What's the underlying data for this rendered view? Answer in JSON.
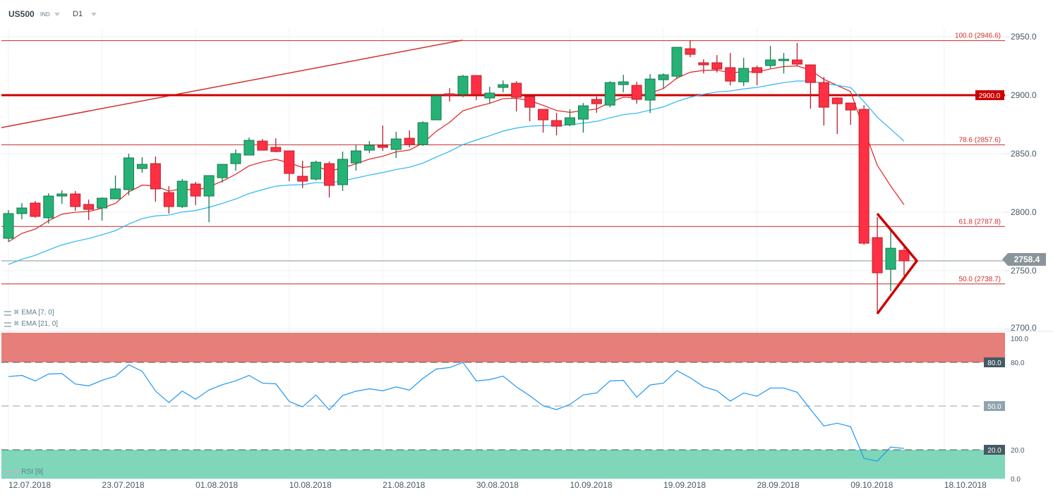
{
  "header": {
    "symbol": "US500",
    "type": "IND",
    "timeframe": "D1"
  },
  "legend": {
    "ema7": "EMA [7, 0]",
    "ema21": "EMA [21, 0]",
    "rsi": "RSI [9]"
  },
  "colors": {
    "up": "#26b276",
    "up_border": "#167a4e",
    "down": "#ff3044",
    "down_border": "#b81f2c",
    "ema7": "#e02020",
    "ema21": "#29b6f6",
    "level": "#cc0000",
    "rsi": "#2196f3"
  },
  "price_axis": {
    "ticks": [
      "2950.0",
      "2900.0",
      "2850.0",
      "2800.0",
      "2750.0",
      "2700.0"
    ],
    "tick_values": [
      2950,
      2900,
      2850,
      2800,
      2750,
      2700
    ]
  },
  "current_price": {
    "value": 2758.4,
    "label": "2758.4"
  },
  "levels": [
    {
      "price": 2946.6,
      "label": "100.0 (2946.6)",
      "kind": "fib"
    },
    {
      "price": 2900.0,
      "label": "2900.0",
      "kind": "major"
    },
    {
      "price": 2857.6,
      "label": "78.6 (2857.6)",
      "kind": "fib"
    },
    {
      "price": 2787.8,
      "label": "61.8 (2787.8)",
      "kind": "fib"
    },
    {
      "price": 2738.7,
      "label": "50.0 (2738.7)",
      "kind": "fib"
    }
  ],
  "x_labels": [
    {
      "label": "12.07.2018",
      "candle": 0
    },
    {
      "label": "23.07.2018",
      "candle": 7
    },
    {
      "label": "01.08.2018",
      "candle": 14
    },
    {
      "label": "10.08.2018",
      "candle": 21
    },
    {
      "label": "21.08.2018",
      "candle": 28
    },
    {
      "label": "30.08.2018",
      "candle": 35
    },
    {
      "label": "10.09.2018",
      "candle": 42
    },
    {
      "label": "19.09.2018",
      "candle": 49
    },
    {
      "label": "28.09.2018",
      "candle": 56
    },
    {
      "label": "09.10.2018",
      "candle": 63
    },
    {
      "label": "18.10.2018",
      "candle": 70
    }
  ],
  "rsi_axis": {
    "ticks": [
      "100.0",
      "80.0",
      "20.0",
      "0.0"
    ],
    "tick_values": [
      100,
      80,
      20,
      0
    ],
    "overbought": "80.0",
    "mid": "50.0",
    "oversold": "20.0"
  },
  "chart_data": {
    "type": "candlestick",
    "ylim": [
      2700,
      2950
    ],
    "ema7_start": 2774.7,
    "ema21_start": 2755.4,
    "ohlc": [
      [
        2777.7,
        2801.8,
        2774.7,
        2798.8
      ],
      [
        2798.8,
        2807.8,
        2794.0,
        2803.6
      ],
      [
        2807.8,
        2809.6,
        2795.2,
        2796.4
      ],
      [
        2795.2,
        2816.2,
        2790.3,
        2813.8
      ],
      [
        2813.8,
        2818.7,
        2807.2,
        2815.6
      ],
      [
        2815.6,
        2818.1,
        2801.2,
        2804.8
      ],
      [
        2806.6,
        2810.8,
        2793.4,
        2802.4
      ],
      [
        2803.6,
        2812.6,
        2792.8,
        2812.0
      ],
      [
        2811.4,
        2831.3,
        2811.4,
        2819.9
      ],
      [
        2819.3,
        2850.0,
        2814.4,
        2846.4
      ],
      [
        2837.3,
        2847.0,
        2833.7,
        2840.9
      ],
      [
        2841.5,
        2847.6,
        2809.0,
        2819.9
      ],
      [
        2816.8,
        2822.3,
        2798.8,
        2804.8
      ],
      [
        2804.8,
        2828.3,
        2803.6,
        2826.5
      ],
      [
        2824.1,
        2825.9,
        2806.0,
        2813.8
      ],
      [
        2813.8,
        2831.3,
        2791.5,
        2831.3
      ],
      [
        2829.5,
        2840.9,
        2825.3,
        2840.9
      ],
      [
        2841.5,
        2853.6,
        2835.5,
        2850.0
      ],
      [
        2848.8,
        2863.8,
        2848.8,
        2861.4
      ],
      [
        2860.8,
        2862.6,
        2853.0,
        2853.0
      ],
      [
        2855.4,
        2863.2,
        2851.2,
        2851.8
      ],
      [
        2852.4,
        2852.4,
        2826.5,
        2833.1
      ],
      [
        2830.7,
        2844.0,
        2820.5,
        2826.5
      ],
      [
        2828.3,
        2844.0,
        2827.1,
        2842.7
      ],
      [
        2841.5,
        2843.4,
        2812.6,
        2822.9
      ],
      [
        2823.5,
        2851.8,
        2818.1,
        2845.2
      ],
      [
        2842.1,
        2857.2,
        2835.5,
        2852.4
      ],
      [
        2853.0,
        2860.8,
        2850.6,
        2857.2
      ],
      [
        2857.2,
        2874.1,
        2852.4,
        2855.4
      ],
      [
        2853.6,
        2868.7,
        2846.4,
        2862.6
      ],
      [
        2863.2,
        2869.9,
        2855.4,
        2857.8
      ],
      [
        2857.8,
        2877.7,
        2856.6,
        2876.5
      ],
      [
        2878.9,
        2899.4,
        2878.9,
        2899.4
      ],
      [
        2901.2,
        2906.0,
        2894.6,
        2900.0
      ],
      [
        2900.6,
        2917.4,
        2898.2,
        2916.2
      ],
      [
        2916.8,
        2916.8,
        2895.8,
        2900.6
      ],
      [
        2897.6,
        2907.2,
        2892.7,
        2901.8
      ],
      [
        2906.6,
        2912.6,
        2902.4,
        2909.0
      ],
      [
        2910.2,
        2912.0,
        2886.1,
        2898.2
      ],
      [
        2898.8,
        2898.8,
        2877.7,
        2889.7
      ],
      [
        2887.9,
        2887.9,
        2868.0,
        2878.9
      ],
      [
        2878.3,
        2884.9,
        2865.6,
        2873.5
      ],
      [
        2874.7,
        2887.9,
        2873.5,
        2880.7
      ],
      [
        2879.5,
        2893.3,
        2868.0,
        2890.9
      ],
      [
        2896.4,
        2898.8,
        2884.9,
        2892.7
      ],
      [
        2891.5,
        2912.0,
        2889.7,
        2910.8
      ],
      [
        2909.0,
        2917.4,
        2902.4,
        2911.4
      ],
      [
        2908.4,
        2911.4,
        2892.7,
        2896.4
      ],
      [
        2895.8,
        2918.0,
        2884.7,
        2913.8
      ],
      [
        2913.2,
        2918.6,
        2905.4,
        2917.4
      ],
      [
        2916.2,
        2940.9,
        2913.8,
        2940.9
      ],
      [
        2939.7,
        2947.0,
        2932.5,
        2934.9
      ],
      [
        2927.7,
        2930.7,
        2918.6,
        2925.9
      ],
      [
        2927.7,
        2934.3,
        2919.3,
        2922.3
      ],
      [
        2923.5,
        2936.1,
        2908.4,
        2912.0
      ],
      [
        2911.4,
        2931.9,
        2907.8,
        2922.9
      ],
      [
        2923.5,
        2925.3,
        2908.4,
        2919.3
      ],
      [
        2925.3,
        2942.1,
        2922.9,
        2930.1
      ],
      [
        2929.5,
        2936.1,
        2918.6,
        2930.7
      ],
      [
        2930.1,
        2944.6,
        2925.3,
        2926.5
      ],
      [
        2925.9,
        2925.9,
        2888.5,
        2910.8
      ],
      [
        2910.8,
        2915.6,
        2874.1,
        2889.7
      ],
      [
        2897.6,
        2898.2,
        2866.8,
        2892.7
      ],
      [
        2893.3,
        2893.3,
        2874.7,
        2887.3
      ],
      [
        2887.9,
        2891.5,
        2772.3,
        2773.5
      ],
      [
        2778.3,
        2795.8,
        2713.2,
        2748.2
      ],
      [
        2751.2,
        2784.3,
        2732.5,
        2769.2
      ],
      [
        2767.4,
        2769.9,
        2745.8,
        2758.4
      ]
    ],
    "rsi": [
      70.3,
      71.1,
      67.3,
      72.1,
      72.4,
      65.2,
      63.9,
      67.7,
      70.6,
      78.4,
      74.0,
      60.3,
      52.4,
      60.3,
      54.7,
      61.1,
      64.7,
      67.4,
      71.1,
      65.8,
      65.3,
      53.2,
      49.4,
      57.6,
      47.4,
      57.3,
      60.2,
      61.9,
      60.5,
      63.2,
      61.0,
      69.0,
      75.5,
      76.5,
      80.0,
      67.3,
      68.2,
      70.6,
      63.2,
      57.1,
      50.2,
      47.6,
      51.1,
      57.7,
      59.0,
      67.3,
      67.7,
      56.1,
      64.5,
      65.8,
      74.4,
      69.5,
      63.4,
      60.5,
      53.4,
      59.0,
      56.8,
      62.4,
      62.4,
      59.5,
      47.7,
      36.3,
      38.2,
      35.8,
      14.0,
      12.1,
      21.8,
      20.8
    ]
  }
}
